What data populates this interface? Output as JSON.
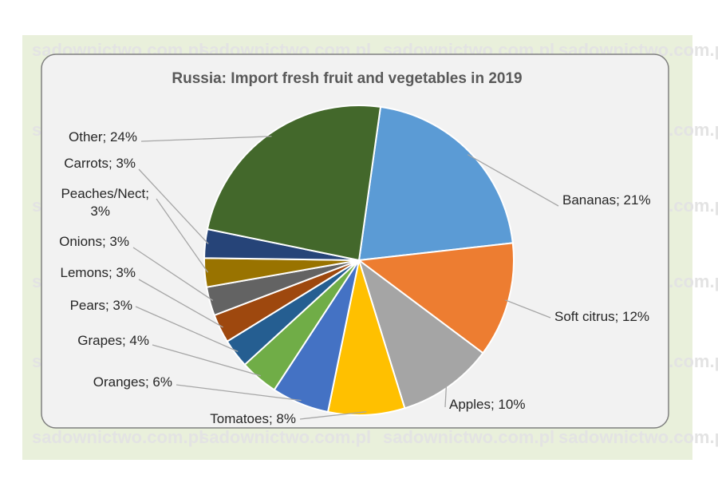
{
  "watermark": "sadownictwo.com.pl",
  "colors": {
    "outer_background": "#e9f0db",
    "chart_area": "#f2f2f2",
    "chart_border": "#7f7f7f",
    "leader_line": "#a6a6a6",
    "slice_edge": "#ffffff"
  },
  "chart_data": {
    "type": "pie",
    "title": "Russia: Import fresh fruit and vegetables in 2019",
    "start_angle_deg": 8,
    "direction": "clockwise",
    "legend": "none",
    "slices": [
      {
        "label": "Bananas; 21%",
        "name": "Bananas",
        "value": 21,
        "color": "#5b9bd5"
      },
      {
        "label": "Soft citrus; 12%",
        "name": "Soft citrus",
        "value": 12,
        "color": "#ed7d31"
      },
      {
        "label": "Apples; 10%",
        "name": "Apples",
        "value": 10,
        "color": "#a5a5a5"
      },
      {
        "label": "Tomatoes; 8%",
        "name": "Tomatoes",
        "value": 8,
        "color": "#ffc000"
      },
      {
        "label": "Oranges; 6%",
        "name": "Oranges",
        "value": 6,
        "color": "#4472c4"
      },
      {
        "label": "Grapes; 4%",
        "name": "Grapes",
        "value": 4,
        "color": "#70ad47"
      },
      {
        "label": "Pears; 3%",
        "name": "Pears",
        "value": 3,
        "color": "#255e91"
      },
      {
        "label": "Lemons; 3%",
        "name": "Lemons",
        "value": 3,
        "color": "#9e480e"
      },
      {
        "label": "Onions; 3%",
        "name": "Onions",
        "value": 3,
        "color": "#636363"
      },
      {
        "label": "Peaches/Nect; 3%",
        "name": "Peaches/Nect",
        "value": 3,
        "color": "#997300"
      },
      {
        "label": "Carrots; 3%",
        "name": "Carrots",
        "value": 3,
        "color": "#264478"
      },
      {
        "label": "Other; 24%",
        "name": "Other",
        "value": 24,
        "color": "#43682b"
      }
    ]
  }
}
